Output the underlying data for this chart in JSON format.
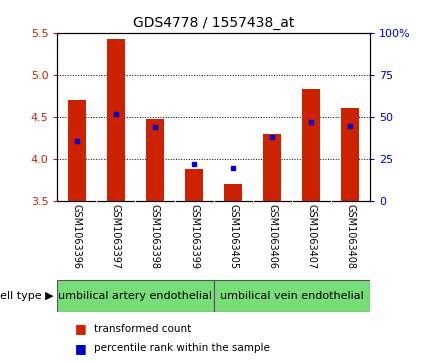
{
  "title": "GDS4778 / 1557438_at",
  "samples": [
    "GSM1063396",
    "GSM1063397",
    "GSM1063398",
    "GSM1063399",
    "GSM1063405",
    "GSM1063406",
    "GSM1063407",
    "GSM1063408"
  ],
  "transformed_counts": [
    4.7,
    5.43,
    4.48,
    3.88,
    3.71,
    4.3,
    4.83,
    4.61
  ],
  "percentile_ranks": [
    36,
    52,
    44,
    22,
    20,
    38,
    47,
    45
  ],
  "ylim": [
    3.5,
    5.5
  ],
  "yticks_left": [
    3.5,
    4.0,
    4.5,
    5.0,
    5.5
  ],
  "yticks_right": [
    0,
    25,
    50,
    75,
    100
  ],
  "cell_type_groups": [
    {
      "label": "umbilical artery endothelial",
      "n_samples": 4,
      "color": "#77dd77"
    },
    {
      "label": "umbilical vein endothelial",
      "n_samples": 4,
      "color": "#77dd77"
    }
  ],
  "bar_color": "#cc2200",
  "percentile_color": "#0000cc",
  "bar_width": 0.45,
  "background_plot": "#ffffff",
  "tick_label_area_color": "#d3d3d3",
  "left_axis_color": "#cc2200",
  "right_axis_color": "#0000cc",
  "cell_type_label": "cell type",
  "title_fontsize": 10,
  "tick_fontsize": 8,
  "label_fontsize": 7,
  "legend_fontsize": 7.5
}
